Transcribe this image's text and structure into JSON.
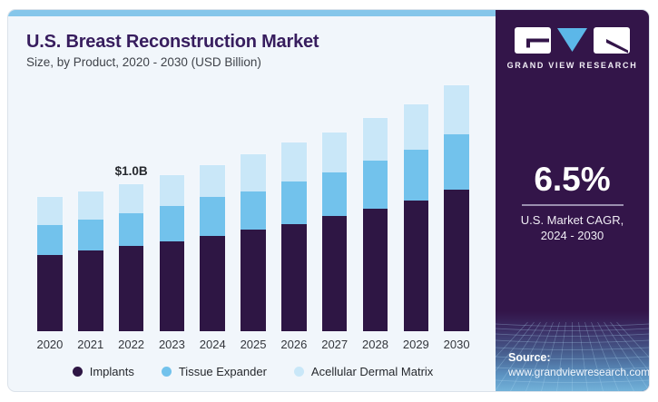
{
  "header": {
    "title": "U.S. Breast Reconstruction Market",
    "subtitle": "Size, by Product, 2020 - 2030 (USD Billion)"
  },
  "chart_data": {
    "type": "bar",
    "stacked": true,
    "title": "U.S. Breast Reconstruction Market",
    "subtitle": "Size, by Product, 2020 - 2030 (USD Billion)",
    "unit": "USD Billion",
    "categories": [
      "2020",
      "2021",
      "2022",
      "2023",
      "2024",
      "2025",
      "2026",
      "2027",
      "2028",
      "2029",
      "2030"
    ],
    "series": [
      {
        "name": "Implants",
        "color": "#2e1644",
        "values": [
          0.52,
          0.55,
          0.58,
          0.61,
          0.65,
          0.69,
          0.73,
          0.78,
          0.83,
          0.89,
          0.96
        ]
      },
      {
        "name": "Tissue Expander",
        "color": "#72c2ec",
        "values": [
          0.2,
          0.21,
          0.22,
          0.24,
          0.26,
          0.26,
          0.29,
          0.3,
          0.33,
          0.34,
          0.38
        ]
      },
      {
        "name": "Acellular Dermal Matrix",
        "color": "#c9e7f8",
        "values": [
          0.19,
          0.19,
          0.2,
          0.21,
          0.22,
          0.25,
          0.26,
          0.27,
          0.29,
          0.31,
          0.33
        ]
      }
    ],
    "annotation": {
      "category": "2022",
      "text": "$1.0B"
    },
    "ylim": [
      0,
      1.8
    ],
    "grid": false,
    "axes_visible": false,
    "legend_position": "bottom"
  },
  "sidebar": {
    "brand": "GRAND VIEW RESEARCH",
    "stat_value": "6.5%",
    "stat_label_line1": "U.S. Market CAGR,",
    "stat_label_line2": "2024 - 2030",
    "source_label": "Source:",
    "source_url": "www.grandviewresearch.com"
  },
  "colors": {
    "accent_strip": "#85c6ea",
    "card_bg": "#f1f6fb",
    "sidebar_bg": "#331549",
    "title_text": "#371d5e",
    "logo_triangle": "#5cb7e8"
  }
}
